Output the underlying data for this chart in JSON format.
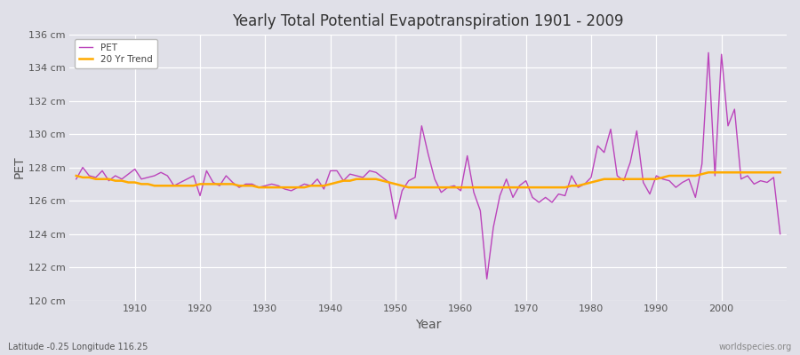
{
  "title": "Yearly Total Potential Evapotranspiration 1901 - 2009",
  "xlabel": "Year",
  "ylabel": "PET",
  "footnote_left": "Latitude -0.25 Longitude 116.25",
  "footnote_right": "worldspecies.org",
  "pet_color": "#bb44bb",
  "trend_color": "#ffaa00",
  "background_color": "#e0e0e8",
  "ylim": [
    120,
    136
  ],
  "yticks": [
    120,
    122,
    124,
    126,
    128,
    130,
    132,
    134,
    136
  ],
  "ytick_labels": [
    "120 cm",
    "122 cm",
    "124 cm",
    "126 cm",
    "128 cm",
    "130 cm",
    "132 cm",
    "134 cm",
    "136 cm"
  ],
  "xticks": [
    1910,
    1920,
    1930,
    1940,
    1950,
    1960,
    1970,
    1980,
    1990,
    2000
  ],
  "years": [
    1901,
    1902,
    1903,
    1904,
    1905,
    1906,
    1907,
    1908,
    1909,
    1910,
    1911,
    1912,
    1913,
    1914,
    1915,
    1916,
    1917,
    1918,
    1919,
    1920,
    1921,
    1922,
    1923,
    1924,
    1925,
    1926,
    1927,
    1928,
    1929,
    1930,
    1931,
    1932,
    1933,
    1934,
    1935,
    1936,
    1937,
    1938,
    1939,
    1940,
    1941,
    1942,
    1943,
    1944,
    1945,
    1946,
    1947,
    1948,
    1949,
    1950,
    1951,
    1952,
    1953,
    1954,
    1955,
    1956,
    1957,
    1958,
    1959,
    1960,
    1961,
    1962,
    1963,
    1964,
    1965,
    1966,
    1967,
    1968,
    1969,
    1970,
    1971,
    1972,
    1973,
    1974,
    1975,
    1976,
    1977,
    1978,
    1979,
    1980,
    1981,
    1982,
    1983,
    1984,
    1985,
    1986,
    1987,
    1988,
    1989,
    1990,
    1991,
    1992,
    1993,
    1994,
    1995,
    1996,
    1997,
    1998,
    1999,
    2000,
    2001,
    2002,
    2003,
    2004,
    2005,
    2006,
    2007,
    2008,
    2009
  ],
  "pet_values": [
    127.3,
    128.0,
    127.5,
    127.4,
    127.8,
    127.2,
    127.5,
    127.3,
    127.6,
    127.9,
    127.3,
    127.4,
    127.5,
    127.7,
    127.5,
    126.9,
    127.1,
    127.3,
    127.5,
    126.3,
    127.8,
    127.1,
    126.9,
    127.5,
    127.1,
    126.8,
    127.0,
    127.0,
    126.8,
    126.9,
    127.0,
    126.9,
    126.7,
    126.6,
    126.8,
    127.0,
    126.9,
    127.3,
    126.7,
    127.8,
    127.8,
    127.2,
    127.6,
    127.5,
    127.4,
    127.8,
    127.7,
    127.4,
    127.1,
    124.9,
    126.6,
    127.2,
    127.4,
    130.5,
    128.8,
    127.3,
    126.5,
    126.8,
    126.9,
    126.6,
    128.7,
    126.5,
    125.4,
    121.3,
    124.4,
    126.3,
    127.3,
    126.2,
    126.9,
    127.2,
    126.2,
    125.9,
    126.2,
    125.9,
    126.4,
    126.3,
    127.5,
    126.8,
    127.0,
    127.4,
    129.3,
    128.9,
    130.3,
    127.5,
    127.2,
    128.3,
    130.2,
    127.1,
    126.4,
    127.5,
    127.3,
    127.2,
    126.8,
    127.1,
    127.3,
    126.2,
    128.2,
    134.9,
    127.5,
    134.8,
    130.5,
    131.5,
    127.3,
    127.5,
    127.0,
    127.2,
    127.1,
    127.4,
    124.0
  ],
  "trend_values": [
    127.5,
    127.4,
    127.4,
    127.3,
    127.3,
    127.3,
    127.2,
    127.2,
    127.1,
    127.1,
    127.0,
    127.0,
    126.9,
    126.9,
    126.9,
    126.9,
    126.9,
    126.9,
    126.9,
    127.0,
    127.0,
    127.0,
    127.0,
    127.0,
    127.0,
    126.9,
    126.9,
    126.9,
    126.8,
    126.8,
    126.8,
    126.8,
    126.8,
    126.8,
    126.8,
    126.8,
    126.9,
    126.9,
    126.9,
    127.0,
    127.1,
    127.2,
    127.2,
    127.3,
    127.3,
    127.3,
    127.3,
    127.2,
    127.1,
    127.0,
    126.9,
    126.8,
    126.8,
    126.8,
    126.8,
    126.8,
    126.8,
    126.8,
    126.8,
    126.8,
    126.8,
    126.8,
    126.8,
    126.8,
    126.8,
    126.8,
    126.8,
    126.8,
    126.8,
    126.8,
    126.8,
    126.8,
    126.8,
    126.8,
    126.8,
    126.8,
    126.9,
    126.9,
    127.0,
    127.1,
    127.2,
    127.3,
    127.3,
    127.3,
    127.3,
    127.3,
    127.3,
    127.3,
    127.3,
    127.3,
    127.4,
    127.5,
    127.5,
    127.5,
    127.5,
    127.5,
    127.6,
    127.7,
    127.7,
    127.7,
    127.7,
    127.7,
    127.7,
    127.7,
    127.7,
    127.7,
    127.7,
    127.7,
    127.7
  ]
}
